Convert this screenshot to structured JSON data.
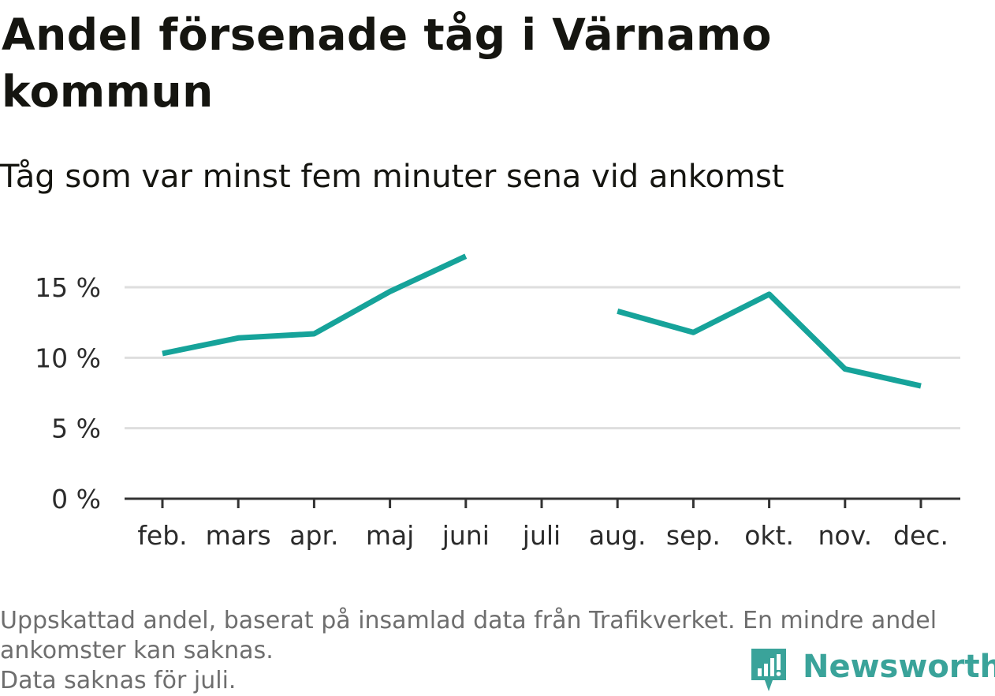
{
  "title": "Andel försenade tåg i Värnamo kommun",
  "subtitle": "Tåg som var minst fem minuter sena vid ankomst",
  "notes": [
    "Uppskattad andel, baserat på insamlad data från Trafikverket. En mindre andel",
    "ankomster kan saknas.",
    "Data saknas för juli."
  ],
  "brand": {
    "name": "Newsworthy",
    "icon": "newsworthy-logo-icon",
    "color": "#3aa39a"
  },
  "colors": {
    "line": "#16a39a",
    "grid": "#dedede",
    "axis": "#333333"
  },
  "chart_data": {
    "type": "line",
    "categories": [
      "feb.",
      "mars",
      "apr.",
      "maj",
      "juni",
      "juli",
      "aug.",
      "sep.",
      "okt.",
      "nov.",
      "dec."
    ],
    "yticks": [
      "0 %",
      "5 %",
      "10 %",
      "15 %"
    ],
    "ytick_values": [
      0,
      5,
      10,
      15
    ],
    "ylim": [
      0,
      18.5
    ],
    "grid": true,
    "series": [
      {
        "values": [
          10.3,
          11.4,
          11.7,
          14.7,
          17.2,
          null,
          13.3,
          11.8,
          14.5,
          9.2,
          8.0
        ]
      }
    ]
  }
}
